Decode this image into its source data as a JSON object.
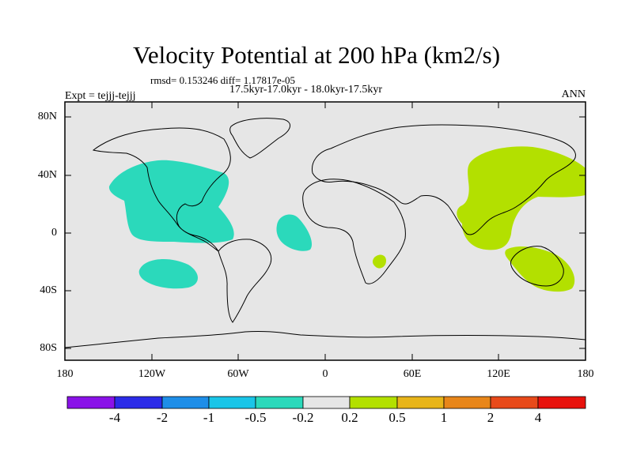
{
  "header": {
    "title": "Velocity Potential at 200 hPa (km2/s)",
    "stats": "rmsd= 0.153246 diff= 1.17817e-05",
    "periods": "17.5kyr-17.0kyr - 18.0kyr-17.5kyr",
    "experiment": "Expt = tejjj-tejjj",
    "season": "ANN"
  },
  "axes": {
    "lat_labels": [
      "80N",
      "40N",
      "0",
      "40S",
      "80S"
    ],
    "lon_labels": [
      "180",
      "120W",
      "60W",
      "0",
      "60E",
      "120E",
      "180"
    ]
  },
  "map": {
    "background": "#e6e6e6",
    "anomalies": [
      {
        "region": "North Atlantic / North America",
        "sign": "negative",
        "color": "#2bd9bb"
      },
      {
        "region": "South Pacific",
        "sign": "negative",
        "color": "#2bd9bb"
      },
      {
        "region": "Tropical Atlantic",
        "sign": "negative",
        "color": "#2bd9bb"
      },
      {
        "region": "Asia / Western Pacific",
        "sign": "positive",
        "color": "#b3e000"
      },
      {
        "region": "Australia / SW Pacific",
        "sign": "positive",
        "color": "#b3e000"
      },
      {
        "region": "Mozambique Channel",
        "sign": "positive",
        "color": "#b3e000"
      }
    ]
  },
  "colorbar": {
    "colors": [
      "#8a12e8",
      "#2b2be8",
      "#1e8ee8",
      "#1ac5e8",
      "#2bd9bb",
      "#e6e6e6",
      "#b3e000",
      "#e8b51a",
      "#e8861a",
      "#e84a1a",
      "#e8120c"
    ],
    "labels": [
      "-4",
      "-2",
      "-1",
      "-0.5",
      "-0.2",
      "0.2",
      "0.5",
      "1",
      "2",
      "4"
    ]
  }
}
